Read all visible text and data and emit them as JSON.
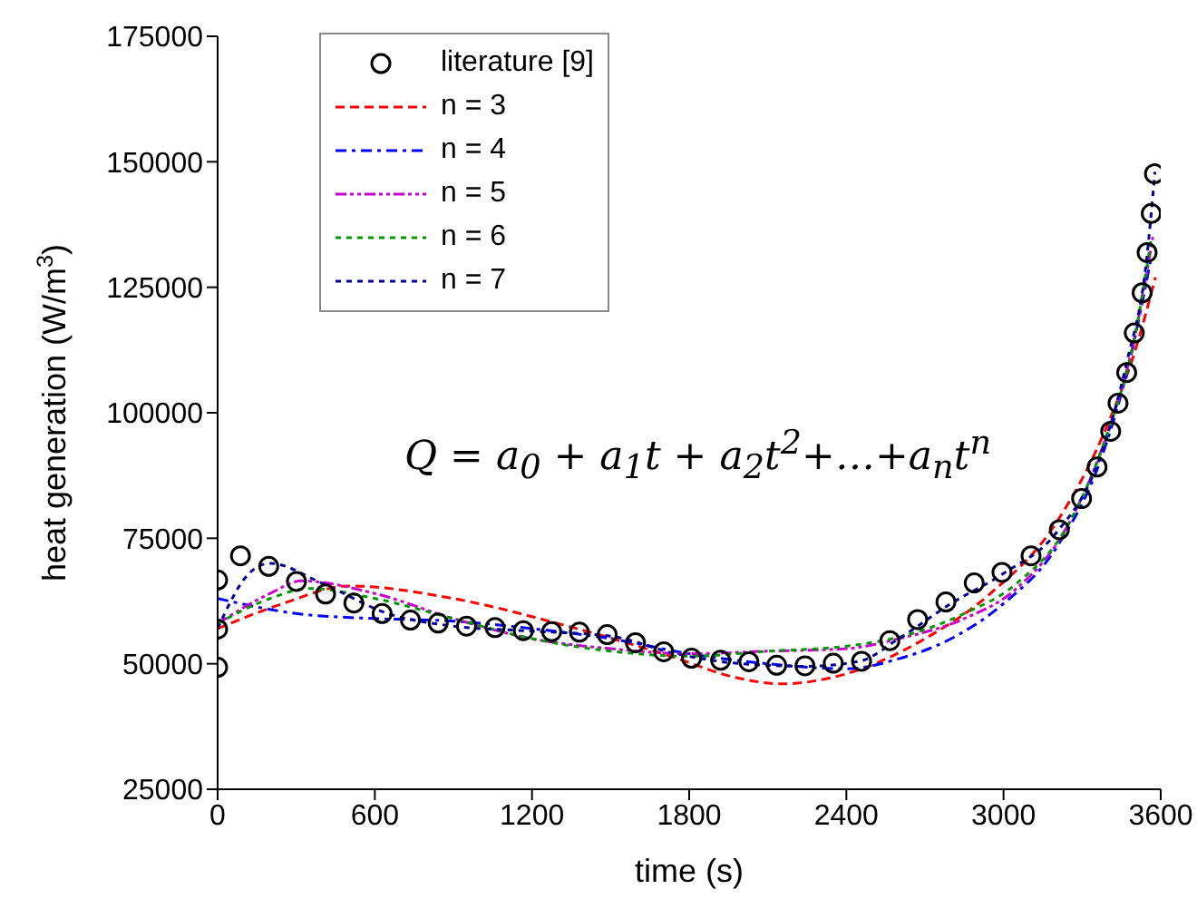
{
  "chart_data": {
    "type": "line",
    "xlabel": "time (s)",
    "ylabel": "heat generation (W/m$^{3}$)",
    "xlim": [
      0,
      3600
    ],
    "xticks": [
      0,
      600,
      1200,
      1800,
      2400,
      3000,
      3600
    ],
    "ylim": [
      25000,
      175000
    ],
    "yticks": [
      25000,
      50000,
      75000,
      100000,
      125000,
      150000,
      175000
    ],
    "grid": false,
    "legend": "top left",
    "annotations": [
      "Q = a$_{0}$ + a$_{1}$t + a$_{2}$t$^{2}$+…+a$_{n}$t$^{n}$"
    ],
    "series": [
      {
        "name": "literature [9]",
        "type": "scatter",
        "marker": "circle",
        "color": "#000000",
        "x": [
          0,
          0,
          0,
          87,
          195,
          301,
          412,
          520,
          628,
          736,
          842,
          950,
          1059,
          1167,
          1275,
          1381,
          1487,
          1595,
          1703,
          1809,
          1920,
          2028,
          2134,
          2242,
          2350,
          2458,
          2566,
          2672,
          2780,
          2888,
          2994,
          3105,
          3213,
          3298,
          3357,
          3409,
          3437,
          3470,
          3499,
          3529,
          3548,
          3564,
          3576
        ],
        "values": [
          66700,
          56900,
          49300,
          71500,
          69400,
          66400,
          63900,
          62100,
          60000,
          58700,
          58100,
          57500,
          57200,
          56600,
          56400,
          56300,
          55800,
          54200,
          52400,
          51100,
          50700,
          50400,
          49700,
          49600,
          50100,
          50500,
          54600,
          58800,
          62300,
          66100,
          68200,
          71500,
          76700,
          82900,
          89200,
          96300,
          101900,
          108000,
          115900,
          123900,
          131900,
          139700,
          147600
        ]
      },
      {
        "name": "n = 3",
        "line_style": "dashed",
        "color": "#ff0000",
        "x": [
          0,
          250,
          500,
          900,
          1300,
          1700,
          2000,
          2150,
          2400,
          2700,
          2950,
          3200,
          3400,
          3500,
          3580
        ],
        "values": [
          57000,
          62000,
          65500,
          63000,
          58000,
          52000,
          47000,
          46000,
          48000,
          55000,
          64000,
          78000,
          98000,
          112000,
          127000
        ]
      },
      {
        "name": "n = 4",
        "line_style": "dashdot",
        "color": "#0000ff",
        "x": [
          0,
          300,
          600,
          900,
          1200,
          1500,
          1800,
          2100,
          2400,
          2600,
          2800,
          3000,
          3200,
          3380,
          3480,
          3560
        ],
        "values": [
          63000,
          60000,
          59000,
          58500,
          57000,
          55000,
          52000,
          50000,
          49000,
          51000,
          55000,
          62000,
          73000,
          92000,
          110000,
          130000
        ]
      },
      {
        "name": "n = 5",
        "line_style": "dashdotdot",
        "color": "#cc00cc",
        "x": [
          0,
          200,
          320,
          600,
          900,
          1200,
          1500,
          1800,
          2100,
          2400,
          2600,
          2850,
          3050,
          3250,
          3390,
          3500,
          3570
        ],
        "values": [
          58000,
          64000,
          66500,
          64000,
          59000,
          55000,
          53000,
          52000,
          52500,
          53000,
          55000,
          59000,
          65000,
          78000,
          95000,
          115000,
          135000
        ]
      },
      {
        "name": "n = 6",
        "line_style": "dotted",
        "color": "#009900",
        "x": [
          0,
          200,
          350,
          600,
          900,
          1200,
          1500,
          1800,
          2100,
          2400,
          2650,
          2850,
          3050,
          3250,
          3390,
          3500,
          3565
        ],
        "values": [
          58000,
          63000,
          65000,
          63000,
          59000,
          55000,
          52500,
          51500,
          52500,
          53500,
          56000,
          60000,
          66000,
          78000,
          95000,
          115000,
          135000
        ]
      },
      {
        "name": "n = 7",
        "line_style": "dotted",
        "color": "#000099",
        "x": [
          0,
          120,
          200,
          400,
          650,
          900,
          1200,
          1500,
          1750,
          2000,
          2250,
          2450,
          2600,
          2800,
          3000,
          3200,
          3360,
          3470,
          3545,
          3578
        ],
        "values": [
          57000,
          68000,
          70000,
          66000,
          60000,
          57500,
          56500,
          55500,
          52000,
          50000,
          49500,
          50500,
          55000,
          62000,
          68000,
          76000,
          90000,
          110000,
          130000,
          148000
        ]
      }
    ]
  }
}
